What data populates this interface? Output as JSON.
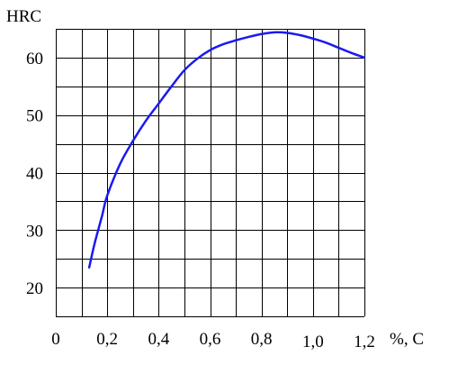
{
  "chart_data": {
    "type": "line",
    "title": "",
    "xlabel": "%, C",
    "ylabel": "HRC",
    "xlim": [
      0,
      1.2
    ],
    "ylim": [
      15,
      65
    ],
    "grid": true,
    "x_grid_step": 0.1,
    "y_grid_step": 5,
    "x_ticks": [
      {
        "value": 0,
        "label": "0"
      },
      {
        "value": 0.2,
        "label": "0,2"
      },
      {
        "value": 0.4,
        "label": "0,4"
      },
      {
        "value": 0.6,
        "label": "0,6"
      },
      {
        "value": 0.8,
        "label": "0,8"
      },
      {
        "value": 1.0,
        "label": "1,0"
      },
      {
        "value": 1.2,
        "label": "1,2"
      }
    ],
    "y_ticks": [
      {
        "value": 20,
        "label": "20"
      },
      {
        "value": 30,
        "label": "30"
      },
      {
        "value": 40,
        "label": "40"
      },
      {
        "value": 50,
        "label": "50"
      },
      {
        "value": 60,
        "label": "60"
      }
    ],
    "series": [
      {
        "color": "#1a1aee",
        "x": [
          0.13,
          0.15,
          0.18,
          0.2,
          0.25,
          0.3,
          0.35,
          0.4,
          0.45,
          0.5,
          0.55,
          0.6,
          0.65,
          0.7,
          0.75,
          0.8,
          0.85,
          0.9,
          0.95,
          1.0,
          1.05,
          1.1,
          1.15,
          1.2
        ],
        "y": [
          23.5,
          27.5,
          32.5,
          36.0,
          41.5,
          45.5,
          49.0,
          52.0,
          55.0,
          57.8,
          59.8,
          61.3,
          62.3,
          63.0,
          63.6,
          64.1,
          64.4,
          64.3,
          63.9,
          63.3,
          62.6,
          61.7,
          60.8,
          60.0
        ]
      }
    ]
  }
}
